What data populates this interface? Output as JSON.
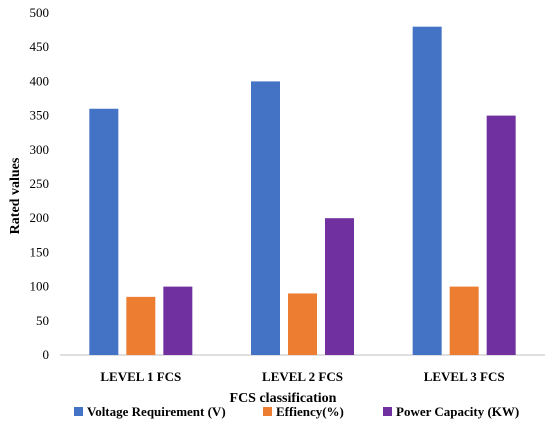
{
  "chart_data": {
    "type": "bar",
    "title": "",
    "xlabel": "FCS  classification",
    "ylabel": "Rated values",
    "categories": [
      "LEVEL 1 FCS",
      "LEVEL 2 FCS",
      "LEVEL 3 FCS"
    ],
    "series": [
      {
        "name": "Voltage Requirement (V)",
        "color": "#4472C4",
        "values": [
          360,
          400,
          480
        ]
      },
      {
        "name": "Effiency(%)",
        "color": "#ED7D31",
        "values": [
          85,
          90,
          100
        ]
      },
      {
        "name": "Power Capacity (KW)",
        "color": "#7030A0",
        "values": [
          100,
          200,
          350
        ]
      }
    ],
    "ylim": [
      0,
      500
    ],
    "yticks": [
      "0",
      "50",
      "100",
      "150",
      "200",
      "250",
      "300",
      "350",
      "400",
      "450",
      "500"
    ],
    "grid": false,
    "legend": "bottom"
  }
}
